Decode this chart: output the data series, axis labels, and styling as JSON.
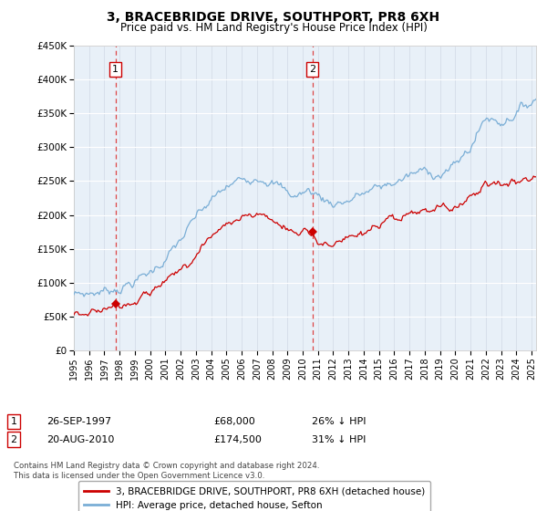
{
  "title": "3, BRACEBRIDGE DRIVE, SOUTHPORT, PR8 6XH",
  "subtitle": "Price paid vs. HM Land Registry's House Price Index (HPI)",
  "legend_line1": "3, BRACEBRIDGE DRIVE, SOUTHPORT, PR8 6XH (detached house)",
  "legend_line2": "HPI: Average price, detached house, Sefton",
  "annotation1_label": "1",
  "annotation1_date": "26-SEP-1997",
  "annotation1_price": "£68,000",
  "annotation1_hpi": "26% ↓ HPI",
  "annotation2_label": "2",
  "annotation2_date": "20-AUG-2010",
  "annotation2_price": "£174,500",
  "annotation2_hpi": "31% ↓ HPI",
  "footnote": "Contains HM Land Registry data © Crown copyright and database right 2024.\nThis data is licensed under the Open Government Licence v3.0.",
  "red_color": "#cc0000",
  "blue_color": "#7aaed6",
  "background_color": "#e8f0f8",
  "annotation_vline_color": "#dd4444",
  "ylim": [
    0,
    450000
  ],
  "yticks": [
    0,
    50000,
    100000,
    150000,
    200000,
    250000,
    300000,
    350000,
    400000,
    450000
  ],
  "ytick_labels": [
    "£0",
    "£50K",
    "£100K",
    "£150K",
    "£200K",
    "£250K",
    "£300K",
    "£350K",
    "£400K",
    "£450K"
  ],
  "sale1_x": 1997.73,
  "sale1_y": 68000,
  "sale2_x": 2010.63,
  "sale2_y": 174500,
  "xmin": 1995,
  "xmax": 2025.3
}
